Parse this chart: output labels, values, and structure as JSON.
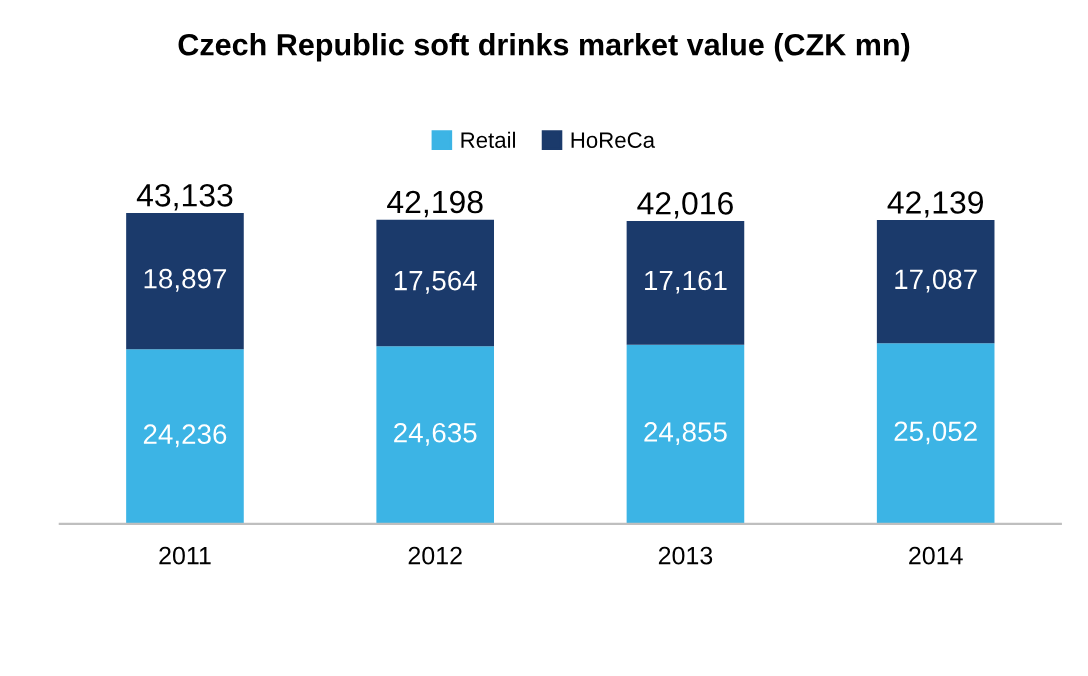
{
  "chart_data": {
    "type": "bar",
    "title": "Czech Republic soft drinks market value (CZK mn)",
    "categories": [
      "2011",
      "2012",
      "2013",
      "2014"
    ],
    "stacked": true,
    "legend": "top",
    "series": [
      {
        "name": "Retail",
        "color": "#3cb4e5",
        "values": [
          24236,
          24635,
          24855,
          25052
        ],
        "value_labels": [
          "24,236",
          "24,635",
          "24,855",
          "25,052"
        ]
      },
      {
        "name": "HoReCa",
        "color": "#1b3a6b",
        "values": [
          18897,
          17564,
          17161,
          17087
        ],
        "value_labels": [
          "18,897",
          "17,564",
          "17,161",
          "17,087"
        ]
      }
    ],
    "totals": [
      "43,133",
      "42,198",
      "42,016",
      "42,139"
    ],
    "grid": false
  }
}
